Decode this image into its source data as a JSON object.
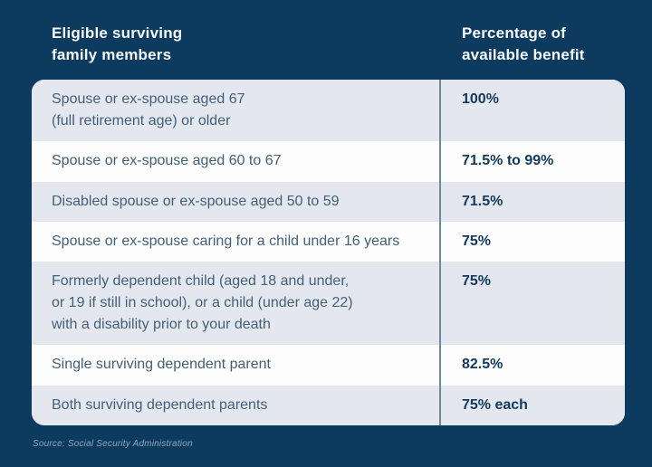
{
  "header": {
    "members_label": "Eligible surviving\nfamily members",
    "percentage_label": "Percentage of\navailable benefit"
  },
  "table": {
    "rows": [
      {
        "member": "Spouse or ex-spouse aged 67\n(full retirement age) or older",
        "benefit": "100%"
      },
      {
        "member": "Spouse or ex-spouse aged 60 to 67",
        "benefit": "71.5% to 99%"
      },
      {
        "member": "Disabled spouse or ex-spouse aged 50 to 59",
        "benefit": "71.5%"
      },
      {
        "member": "Spouse or ex-spouse caring for a child under 16 years",
        "benefit": "75%"
      },
      {
        "member": "Formerly dependent child (aged 18 and under,\nor 19 if still in school), or a child (under age 22)\nwith a disability prior to your death",
        "benefit": "75%"
      },
      {
        "member": "Single surviving dependent parent",
        "benefit": "82.5%"
      },
      {
        "member": "Both surviving dependent parents",
        "benefit": "75% each"
      }
    ]
  },
  "footer": {
    "source": "Source: Social Security Administration"
  },
  "colors": {
    "navy": "#0d3b60",
    "row_gray": "#e4e8ee",
    "row_white": "#fdfdfe",
    "divider": "#6e8aa1",
    "member_text": "#42607a",
    "benefit_text": "#13395c",
    "header_text": "#f7fafc",
    "source_text": "#8fa8bd"
  },
  "chart_data": {
    "type": "table",
    "title": "",
    "columns": [
      "Eligible surviving family members",
      "Percentage of available benefit"
    ],
    "rows": [
      [
        "Spouse or ex-spouse aged 67 (full retirement age) or older",
        "100%"
      ],
      [
        "Spouse or ex-spouse aged 60 to 67",
        "71.5% to 99%"
      ],
      [
        "Disabled spouse or ex-spouse aged 50 to 59",
        "71.5%"
      ],
      [
        "Spouse or ex-spouse caring for a child under 16 years",
        "75%"
      ],
      [
        "Formerly dependent child (aged 18 and under, or 19 if still in school), or a child (under age 22) with a disability prior to your death",
        "75%"
      ],
      [
        "Single surviving dependent parent",
        "82.5%"
      ],
      [
        "Both surviving dependent parents",
        "75% each"
      ]
    ],
    "source": "Source: Social Security Administration",
    "layout_hints": {
      "row_striping": "odd rows gray, even rows white",
      "value_alignment": "top-aligned with first line of member text",
      "legend_position": "none",
      "grid": "single vertical divider between columns"
    }
  }
}
